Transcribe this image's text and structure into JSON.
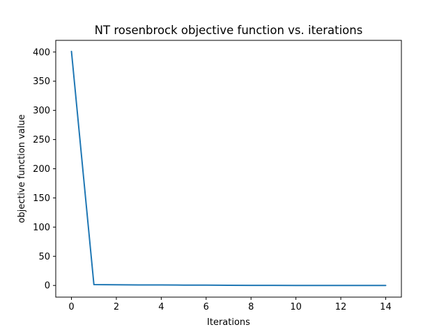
{
  "chart_data": {
    "type": "line",
    "title": "NT rosenbrock objective function vs. iterations",
    "xlabel": "Iterations",
    "ylabel": "objective function value",
    "xlim": [
      -0.7,
      14.7
    ],
    "ylim": [
      -20,
      420
    ],
    "xticks": [
      0,
      2,
      4,
      6,
      8,
      10,
      12,
      14
    ],
    "yticks": [
      0,
      50,
      100,
      150,
      200,
      250,
      300,
      350,
      400
    ],
    "grid": false,
    "series": [
      {
        "color": "#1f77b4",
        "x": [
          0,
          1,
          2,
          3,
          4,
          5,
          6,
          7,
          8,
          9,
          10,
          11,
          12,
          13,
          14
        ],
        "y": [
          401,
          1.5,
          1.2,
          0.9,
          0.8,
          0.6,
          0.5,
          0.2,
          0.1,
          0.1,
          0.05,
          0.03,
          0.01,
          0.0,
          0.0
        ]
      }
    ]
  }
}
